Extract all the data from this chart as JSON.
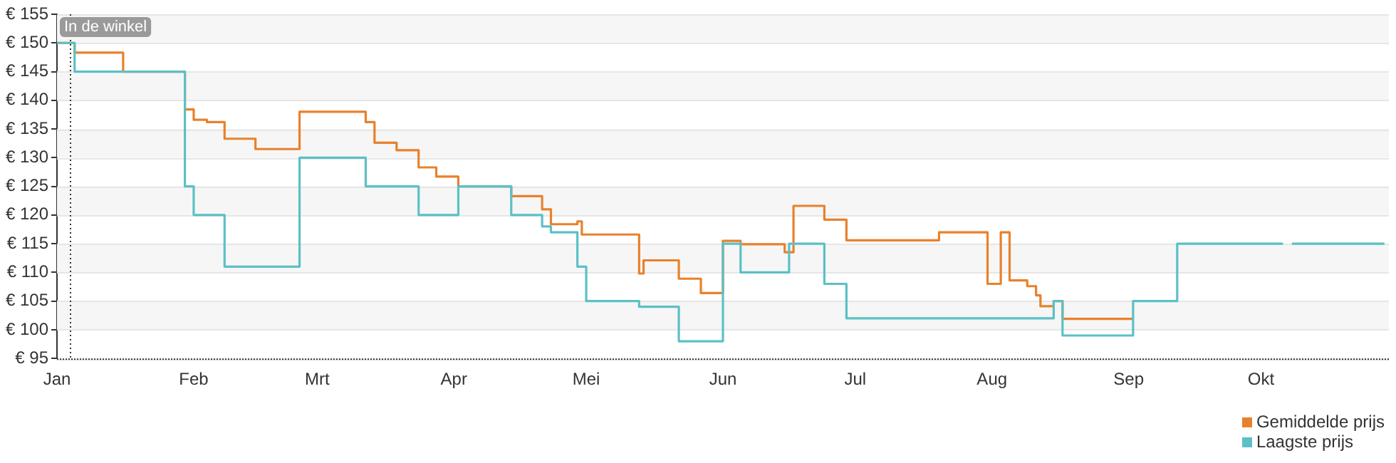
{
  "chart_data": {
    "type": "step",
    "ylim": [
      95,
      155
    ],
    "yticks": [
      {
        "value": 95,
        "label": "€ 95"
      },
      {
        "value": 100,
        "label": "€ 100"
      },
      {
        "value": 105,
        "label": "€ 105"
      },
      {
        "value": 110,
        "label": "€ 110"
      },
      {
        "value": 115,
        "label": "€ 115"
      },
      {
        "value": 120,
        "label": "€ 120"
      },
      {
        "value": 125,
        "label": "€ 125"
      },
      {
        "value": 130,
        "label": "€ 130"
      },
      {
        "value": 135,
        "label": "€ 135"
      },
      {
        "value": 140,
        "label": "€ 140"
      },
      {
        "value": 145,
        "label": "€ 145"
      },
      {
        "value": 150,
        "label": "€ 150"
      },
      {
        "value": 155,
        "label": "€ 155"
      }
    ],
    "xlim": [
      "--01-01",
      "--10-30"
    ],
    "xticks": [
      {
        "value": "--01-01",
        "label": "Jan"
      },
      {
        "value": "--02-01",
        "label": "Feb"
      },
      {
        "value": "--03-01",
        "label": "Mrt"
      },
      {
        "value": "--04-01",
        "label": "Apr"
      },
      {
        "value": "--05-01",
        "label": "Mei"
      },
      {
        "value": "--06-01",
        "label": "Jun"
      },
      {
        "value": "--07-01",
        "label": "Jul"
      },
      {
        "value": "--08-01",
        "label": "Aug"
      },
      {
        "value": "--09-01",
        "label": "Sep"
      },
      {
        "value": "--10-01",
        "label": "Okt"
      }
    ],
    "grid": "y",
    "legend": "bottom right",
    "marker": "none",
    "line_style": "solid",
    "ref_lines": [
      {
        "axis": "x",
        "value": "--01-04",
        "label": "In de winkel",
        "line_style": "dotted",
        "color": "#333333"
      }
    ],
    "series": [
      {
        "name": "Gemiddelde prijs",
        "color": "#e8812c",
        "x": [
          "--01-01",
          "--01-05",
          "--01-16",
          "--01-30",
          "--02-01",
          "--02-04",
          "--02-08",
          "--02-15",
          "--02-25",
          "--03-12",
          "--03-14",
          "--03-19",
          "--03-24",
          "--03-28",
          "--04-02",
          "--04-14",
          "--04-21",
          "--04-23",
          "--04-29",
          "--04-30",
          "--05-13",
          "--05-14",
          "--05-22",
          "--05-27",
          "--06-01",
          "--06-05",
          "--06-15",
          "--06-17",
          "--06-24",
          "--06-29",
          "--07-20",
          "--07-31",
          "--08-03",
          "--08-05",
          "--08-09",
          "--08-11",
          "--08-12",
          "--08-15",
          "--08-17",
          "--09-02"
        ],
        "values": [
          150,
          148.3,
          145,
          138.4,
          136.6,
          136.2,
          133.3,
          131.5,
          138,
          136.2,
          132.6,
          131.3,
          128.3,
          126.7,
          125,
          123.3,
          121,
          118.4,
          118.9,
          116.6,
          109.8,
          112.1,
          108.9,
          106.4,
          115.5,
          114.9,
          113.5,
          121.6,
          119.2,
          115.6,
          117,
          108,
          117,
          108.6,
          107.6,
          106,
          104.1,
          105,
          101.9,
          101.9
        ]
      },
      {
        "name": "Laagste prijs",
        "color": "#5cc0c6",
        "x": [
          "--01-01",
          "--01-05",
          "--01-30",
          "--02-01",
          "--02-08",
          "--02-25",
          "--03-12",
          "--03-24",
          "--04-02",
          "--04-14",
          "--04-21",
          "--04-23",
          "--04-29",
          "--05-01",
          "--05-13",
          "--05-22",
          "--06-01",
          "--06-05",
          "--06-16",
          "--06-24",
          "--06-29",
          "--08-15",
          "--08-17",
          "--09-02",
          "--09-12",
          "--10-06",
          "--10-07",
          "--10-08",
          "--10-29"
        ],
        "values": [
          150,
          145,
          125,
          120,
          111,
          130,
          125,
          120,
          125,
          120,
          118,
          117,
          111,
          105,
          104,
          98,
          115,
          110,
          115,
          108,
          102,
          105,
          99,
          105,
          115,
          115,
          null,
          115,
          115
        ]
      }
    ]
  }
}
